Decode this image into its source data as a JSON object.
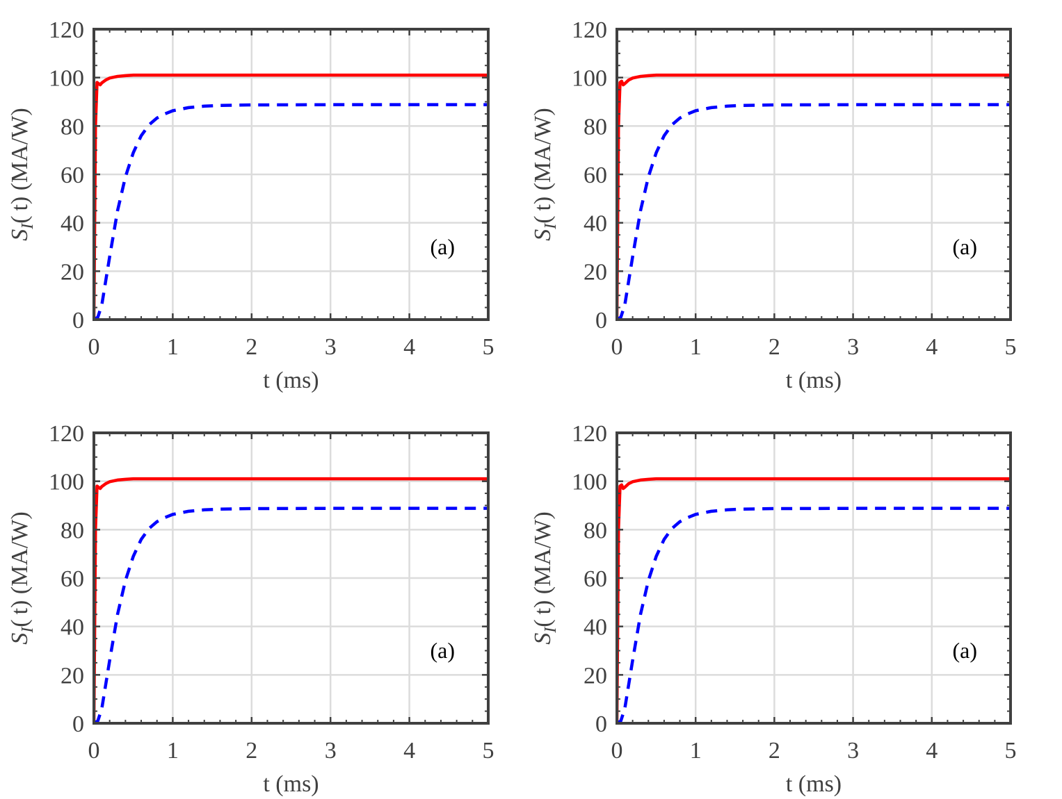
{
  "chart_data": [
    {
      "type": "line",
      "panel": "top-left",
      "xlabel": "t (ms)",
      "ylabel": {
        "main": "S",
        "sub": "I",
        "arg": "(t)",
        "unit": "(MA/W)"
      },
      "annotation": "(a)",
      "annotation_position": "lower-right",
      "xlim": [
        0,
        5
      ],
      "ylim": [
        0,
        120
      ],
      "xticks": [
        "0",
        "1",
        "2",
        "3",
        "4",
        "5"
      ],
      "yticks": [
        "0",
        "20",
        "40",
        "60",
        "80",
        "100",
        "120"
      ],
      "grid": true,
      "series": [
        {
          "name": "solid",
          "color": "#ff0000",
          "style": "solid",
          "x": [
            0,
            0.02,
            0.04,
            0.06,
            0.08,
            0.1,
            0.15,
            0.2,
            0.3,
            0.4,
            0.5,
            0.6,
            0.8,
            1.0,
            1.5,
            2,
            3,
            4,
            5
          ],
          "y": [
            0,
            80,
            98,
            97.5,
            97,
            97.8,
            99,
            99.8,
            100.5,
            100.8,
            101,
            101,
            101,
            101,
            101,
            101,
            101,
            101,
            101
          ]
        },
        {
          "name": "dashed",
          "color": "#0000ff",
          "style": "dashed",
          "x": [
            0,
            0.05,
            0.1,
            0.2,
            0.3,
            0.4,
            0.5,
            0.6,
            0.7,
            0.8,
            0.9,
            1.0,
            1.2,
            1.4,
            1.6,
            2,
            3,
            4,
            5
          ],
          "y": [
            0,
            1,
            6,
            26,
            45,
            59,
            69,
            76,
            80.5,
            83.3,
            85,
            86.3,
            87.6,
            88.2,
            88.5,
            88.7,
            88.8,
            88.8,
            88.8
          ]
        }
      ]
    },
    {
      "type": "line",
      "panel": "top-right",
      "xlabel": "t (ms)",
      "ylabel": {
        "main": "S",
        "sub": "I",
        "arg": "(t)",
        "unit": "(MA/W)"
      },
      "annotation": "(a)",
      "annotation_position": "lower-right",
      "xlim": [
        0,
        5
      ],
      "ylim": [
        0,
        120
      ],
      "xticks": [
        "0",
        "1",
        "2",
        "3",
        "4",
        "5"
      ],
      "yticks": [
        "0",
        "20",
        "40",
        "60",
        "80",
        "100",
        "120"
      ],
      "grid": true,
      "series": [
        {
          "name": "solid",
          "color": "#ff0000",
          "style": "solid",
          "x": [
            0,
            0.02,
            0.04,
            0.06,
            0.08,
            0.1,
            0.15,
            0.2,
            0.3,
            0.4,
            0.5,
            0.6,
            0.8,
            1.0,
            1.5,
            2,
            3,
            4,
            5
          ],
          "y": [
            0,
            80,
            98,
            98.5,
            97,
            97.5,
            99,
            99.8,
            100.5,
            100.8,
            101,
            101,
            101,
            101,
            101,
            101,
            101,
            101,
            101
          ]
        },
        {
          "name": "dashed",
          "color": "#0000ff",
          "style": "dashed",
          "x": [
            0,
            0.05,
            0.1,
            0.2,
            0.3,
            0.4,
            0.5,
            0.6,
            0.7,
            0.8,
            0.9,
            1.0,
            1.2,
            1.4,
            1.6,
            2,
            3,
            4,
            5
          ],
          "y": [
            0,
            1,
            6,
            26,
            45,
            59,
            69,
            76,
            80.5,
            83.3,
            85,
            86.3,
            87.6,
            88.2,
            88.5,
            88.7,
            88.8,
            88.8,
            88.8
          ]
        }
      ]
    },
    {
      "type": "line",
      "panel": "bottom-left",
      "xlabel": "t (ms)",
      "ylabel": {
        "main": "S",
        "sub": "I",
        "arg": "(t)",
        "unit": "(MA/W)"
      },
      "annotation": "(a)",
      "annotation_position": "lower-right",
      "xlim": [
        0,
        5
      ],
      "ylim": [
        0,
        120
      ],
      "xticks": [
        "0",
        "1",
        "2",
        "3",
        "4",
        "5"
      ],
      "yticks": [
        "0",
        "20",
        "40",
        "60",
        "80",
        "100",
        "120"
      ],
      "grid": true,
      "series": [
        {
          "name": "solid",
          "color": "#ff0000",
          "style": "solid",
          "x": [
            0,
            0.02,
            0.04,
            0.06,
            0.08,
            0.1,
            0.15,
            0.2,
            0.3,
            0.4,
            0.5,
            0.6,
            0.8,
            1.0,
            1.5,
            2,
            3,
            4,
            5
          ],
          "y": [
            0,
            80,
            98,
            97.5,
            97,
            97.8,
            99,
            99.8,
            100.5,
            100.8,
            101,
            101,
            101,
            101,
            101,
            101,
            101,
            101,
            101
          ]
        },
        {
          "name": "dashed",
          "color": "#0000ff",
          "style": "dashed",
          "x": [
            0,
            0.05,
            0.1,
            0.2,
            0.3,
            0.4,
            0.5,
            0.6,
            0.7,
            0.8,
            0.9,
            1.0,
            1.2,
            1.4,
            1.6,
            2,
            3,
            4,
            5
          ],
          "y": [
            0,
            1,
            6,
            26,
            45,
            59,
            69,
            76,
            80.5,
            83.3,
            85,
            86.3,
            87.6,
            88.2,
            88.5,
            88.7,
            88.8,
            88.8,
            88.8
          ]
        }
      ]
    },
    {
      "type": "line",
      "panel": "bottom-right",
      "xlabel": "t (ms)",
      "ylabel": {
        "main": "S",
        "sub": "I",
        "arg": "(t)",
        "unit": "(MA/W)"
      },
      "annotation": "(a)",
      "annotation_position": "lower-right",
      "xlim": [
        0,
        5
      ],
      "ylim": [
        0,
        120
      ],
      "xticks": [
        "0",
        "1",
        "2",
        "3",
        "4",
        "5"
      ],
      "yticks": [
        "0",
        "20",
        "40",
        "60",
        "80",
        "100",
        "120"
      ],
      "grid": true,
      "series": [
        {
          "name": "solid",
          "color": "#ff0000",
          "style": "solid",
          "x": [
            0,
            0.02,
            0.04,
            0.06,
            0.08,
            0.1,
            0.15,
            0.2,
            0.3,
            0.4,
            0.5,
            0.6,
            0.8,
            1.0,
            1.5,
            2,
            3,
            4,
            5
          ],
          "y": [
            0,
            80,
            98,
            98.5,
            97,
            97.5,
            99,
            99.8,
            100.5,
            100.8,
            101,
            101,
            101,
            101,
            101,
            101,
            101,
            101,
            101
          ]
        },
        {
          "name": "dashed",
          "color": "#0000ff",
          "style": "dashed",
          "x": [
            0,
            0.05,
            0.1,
            0.2,
            0.3,
            0.4,
            0.5,
            0.6,
            0.7,
            0.8,
            0.9,
            1.0,
            1.2,
            1.4,
            1.6,
            2,
            3,
            4,
            5
          ],
          "y": [
            0,
            1,
            6,
            26,
            45,
            59,
            69,
            76,
            80.5,
            83.3,
            85,
            86.3,
            87.6,
            88.2,
            88.5,
            88.7,
            88.8,
            88.8,
            88.8
          ]
        }
      ]
    }
  ]
}
